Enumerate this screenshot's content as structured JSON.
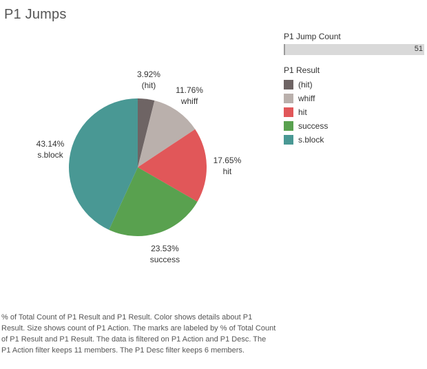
{
  "title": "P1 Jumps",
  "filter": {
    "title": "P1 Jump Count",
    "value": "51",
    "fraction": 1.0
  },
  "legend": {
    "title": "P1 Result"
  },
  "chart_data": {
    "type": "pie",
    "title": "P1 Jumps",
    "slices": [
      {
        "category": "(hit)",
        "percent": 3.92,
        "label": "3.92%",
        "color": "#6e6464"
      },
      {
        "category": "whiff",
        "percent": 11.76,
        "label": "11.76%",
        "color": "#bab0ac"
      },
      {
        "category": "hit",
        "percent": 17.65,
        "label": "17.65%",
        "color": "#e15759"
      },
      {
        "category": "success",
        "percent": 23.53,
        "label": "23.53%",
        "color": "#59a14f"
      },
      {
        "category": "s.block",
        "percent": 43.14,
        "label": "43.14%",
        "color": "#499894"
      }
    ],
    "start": "12 o'clock",
    "direction": "clockwise",
    "legend_placement": "right"
  },
  "caption": "% of Total Count of P1 Result and P1 Result.  Color shows details about P1 Result.  Size shows count of P1 Action.  The marks are labeled by % of Total Count of P1 Result and P1 Result. The data is filtered on P1 Action and P1 Desc. The P1 Action filter keeps 11 members. The P1 Desc filter keeps 6 members."
}
